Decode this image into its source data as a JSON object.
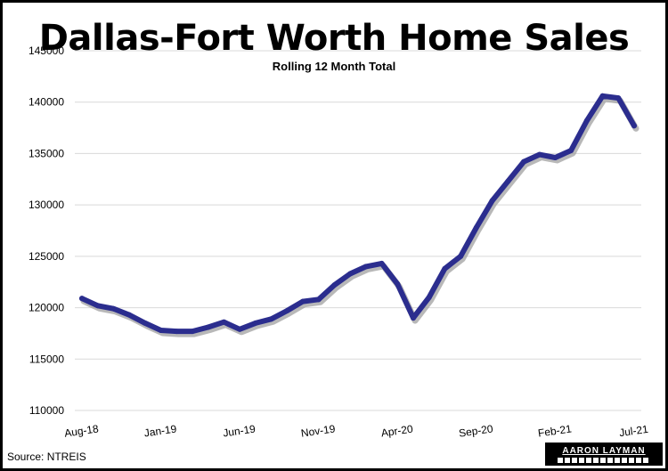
{
  "title": "Dallas-Fort Worth Home Sales",
  "subtitle": "Rolling 12 Month Total",
  "source": "Source: NTREIS",
  "logo_text": "AARON LAYMAN",
  "colors": {
    "line": "#2b2d8e",
    "shadow": "#9a9a9a",
    "grid": "#d9d9d9",
    "frame": "#000000"
  },
  "chart_data": {
    "type": "line",
    "title": "Dallas-Fort Worth Home Sales",
    "subtitle": "Rolling 12 Month Total",
    "ylim": [
      110000,
      145000
    ],
    "yticks": [
      110000,
      115000,
      120000,
      125000,
      130000,
      135000,
      140000,
      145000
    ],
    "ytick_labels": [
      "110000",
      "115000",
      "120000",
      "125000",
      "130000",
      "135000",
      "140000",
      "145000"
    ],
    "grid": "horizontal",
    "x": [
      "Aug-18",
      "Sep-18",
      "Oct-18",
      "Nov-18",
      "Dec-18",
      "Jan-19",
      "Feb-19",
      "Mar-19",
      "Apr-19",
      "May-19",
      "Jun-19",
      "Jul-19",
      "Aug-19",
      "Sep-19",
      "Oct-19",
      "Nov-19",
      "Dec-19",
      "Jan-20",
      "Feb-20",
      "Mar-20",
      "Apr-20",
      "May-20",
      "Jun-20",
      "Jul-20",
      "Aug-20",
      "Sep-20",
      "Oct-20",
      "Nov-20",
      "Dec-20",
      "Jan-21",
      "Feb-21",
      "Mar-21",
      "Apr-21",
      "May-21",
      "Jun-21",
      "Jul-21"
    ],
    "xtick_labels": [
      "Aug-18",
      "Jan-19",
      "Jun-19",
      "Nov-19",
      "Apr-20",
      "Sep-20",
      "Feb-21",
      "Jul-21"
    ],
    "xtick_index": [
      0,
      5,
      10,
      15,
      20,
      25,
      30,
      35
    ],
    "series": [
      {
        "values": [
          120900,
          120200,
          119900,
          119300,
          118500,
          117800,
          117700,
          117700,
          118100,
          118600,
          117900,
          118500,
          118900,
          119700,
          120600,
          120800,
          122200,
          123300,
          124000,
          124300,
          122300,
          119000,
          121000,
          123800,
          125000,
          127800,
          130400,
          132300,
          134200,
          134900,
          134600,
          135300,
          138200,
          140600,
          140400,
          137700
        ]
      }
    ]
  }
}
